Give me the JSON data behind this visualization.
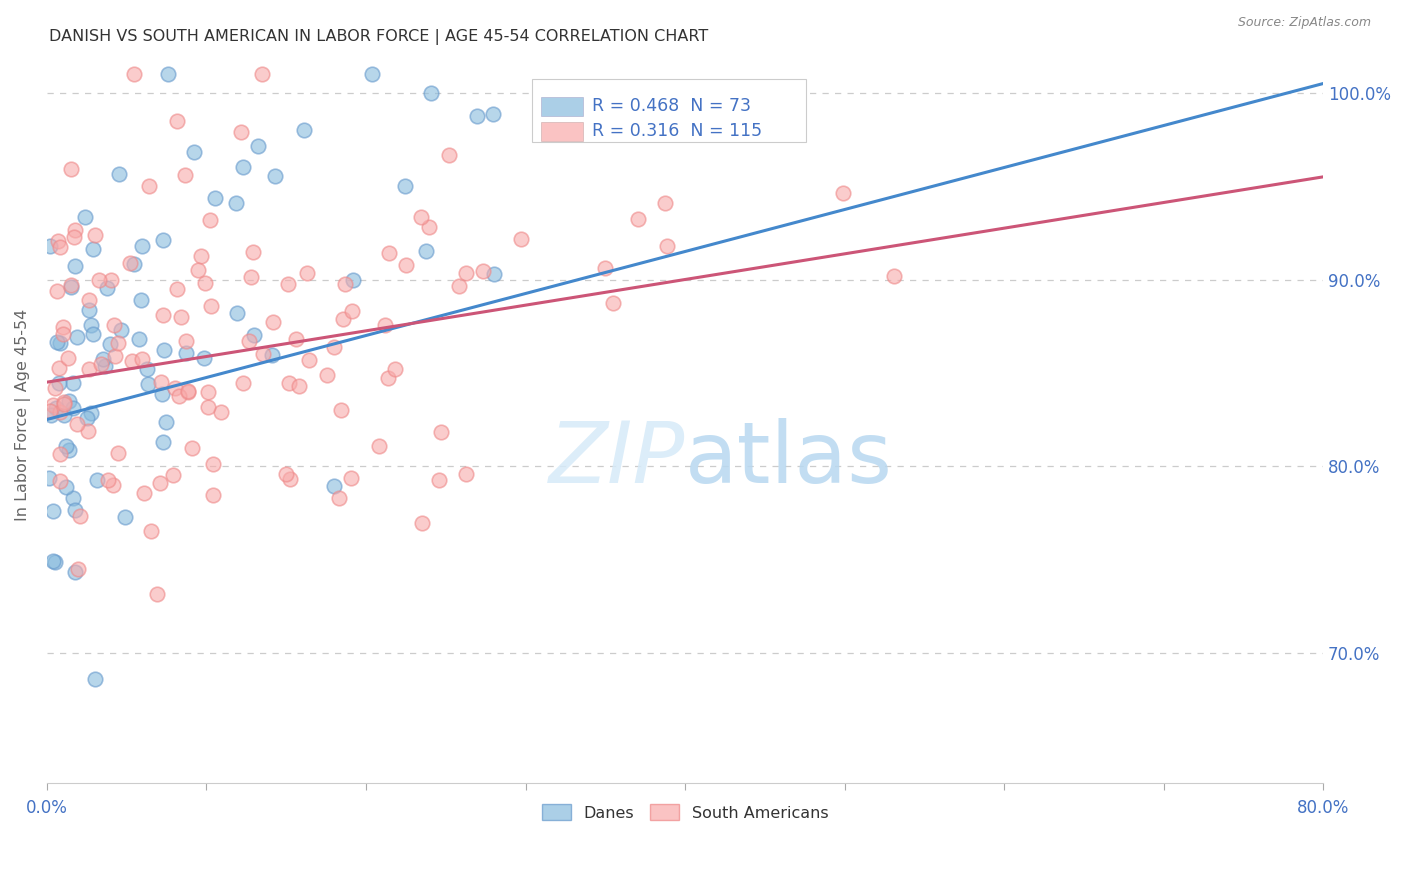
{
  "title": "DANISH VS SOUTH AMERICAN IN LABOR FORCE | AGE 45-54 CORRELATION CHART",
  "source": "Source: ZipAtlas.com",
  "ylabel_label": "In Labor Force | Age 45-54",
  "xlim": [
    0.0,
    0.8
  ],
  "ylim": [
    0.63,
    1.025
  ],
  "danes_R": "0.468",
  "danes_N": "73",
  "sa_R": "0.316",
  "sa_N": "115",
  "danes_color": "#88bbdd",
  "sa_color": "#f8aaaa",
  "danes_edge_color": "#6699cc",
  "sa_edge_color": "#ee8888",
  "trend_danes_color": "#4488cc",
  "trend_sa_color": "#cc5577",
  "grid_color": "#cccccc",
  "tick_color": "#4472c4",
  "ylabel_color": "#666666",
  "title_color": "#333333",
  "source_color": "#888888",
  "watermark_color": "#d6eaf8",
  "danes_trend_x0": 0.0,
  "danes_trend_y0": 0.825,
  "danes_trend_x1": 0.8,
  "danes_trend_y1": 1.005,
  "sa_trend_x0": 0.0,
  "sa_trend_y0": 0.845,
  "sa_trend_x1": 0.8,
  "sa_trend_y1": 0.955
}
